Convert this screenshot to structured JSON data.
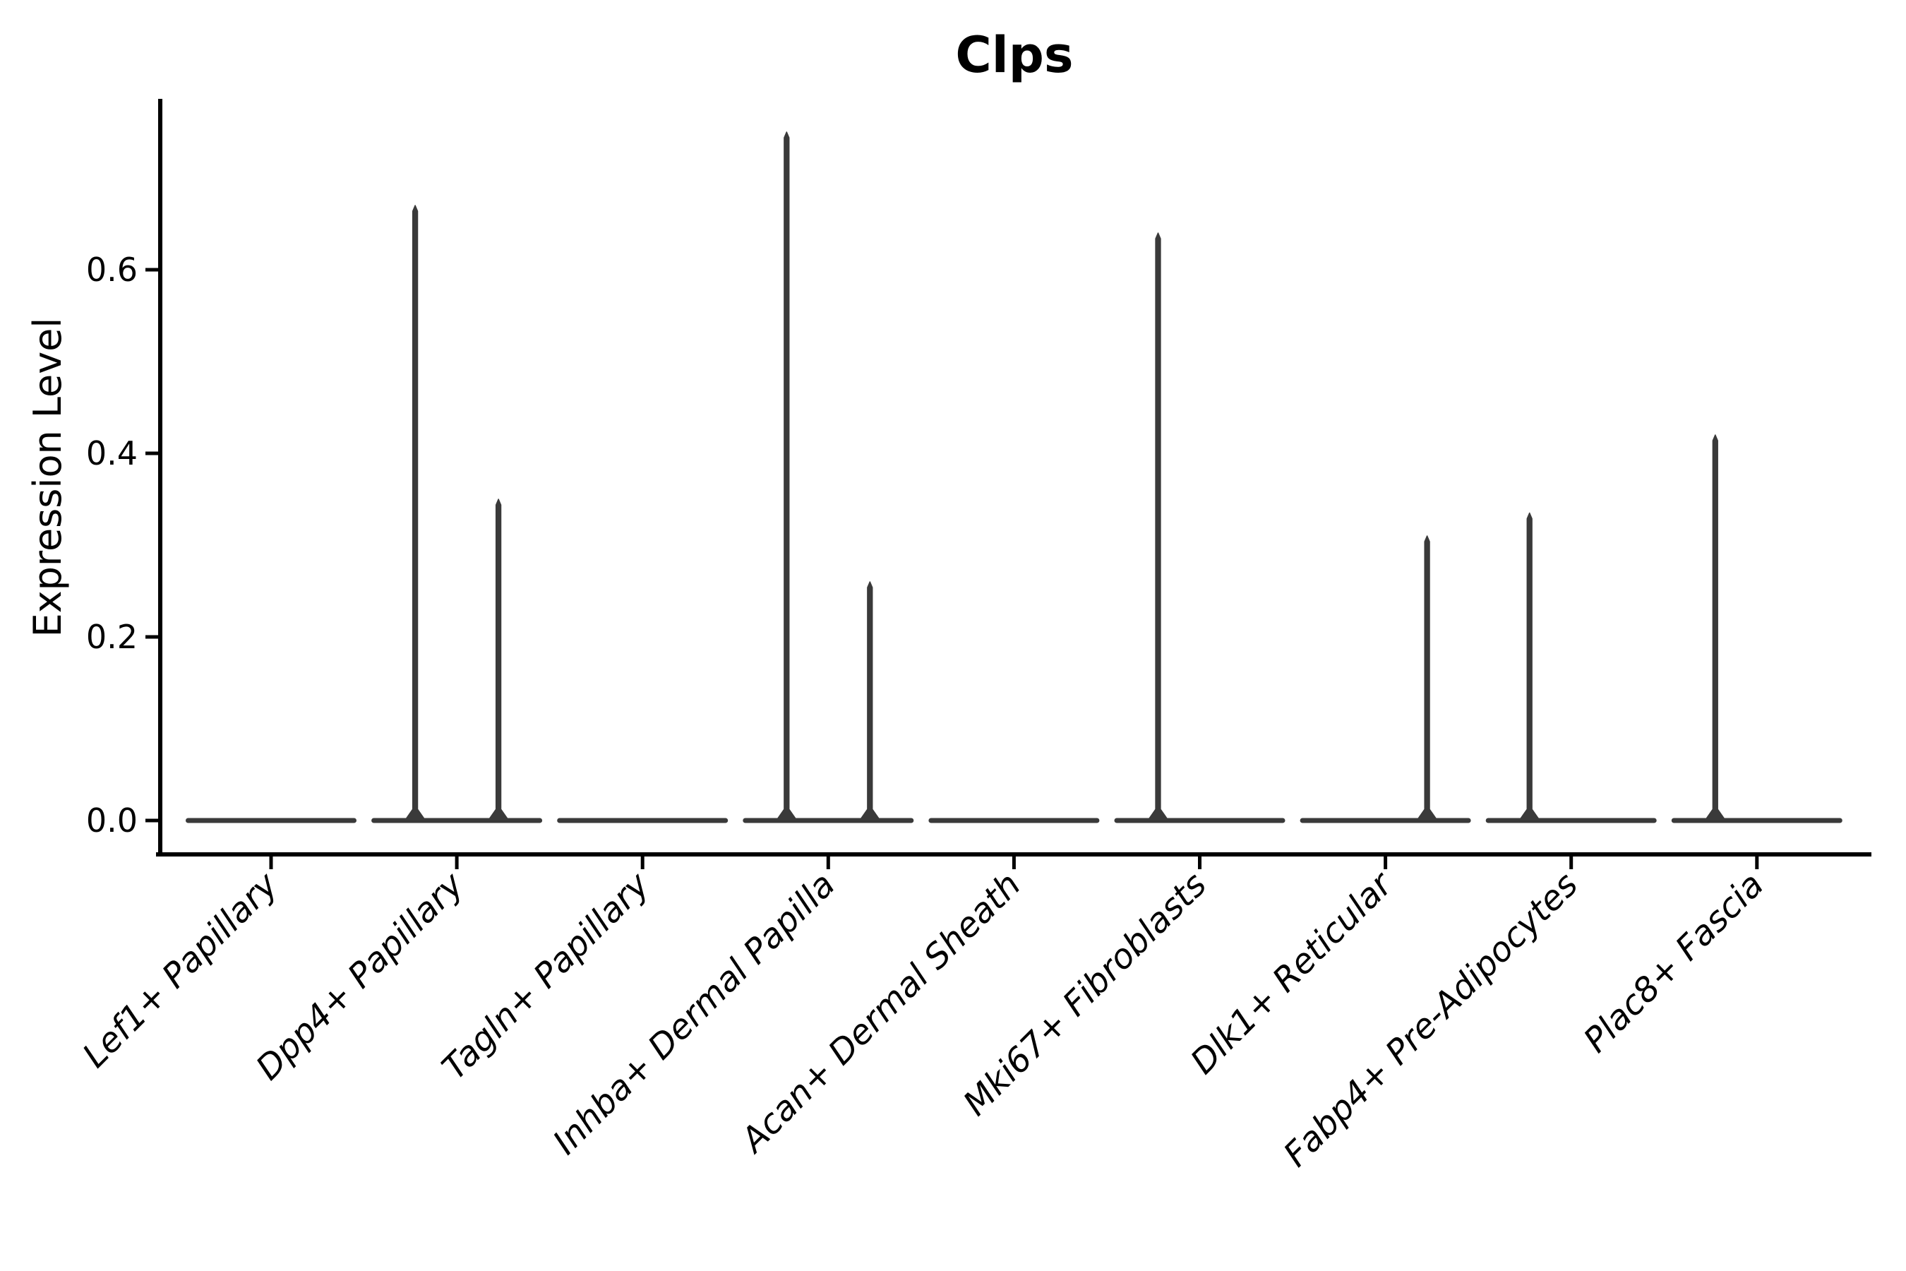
{
  "chart_data": {
    "type": "violin",
    "title": "Clps",
    "ylabel": "Expression Level",
    "xlabel": "",
    "categories": [
      "Lef1+ Papillary",
      "Dpp4+ Papillary",
      "Tagln+ Papillary",
      "Inhba+ Dermal Papilla",
      "Acan+ Dermal Sheath",
      "Mki67+ Fibroblasts",
      "Dlk1+ Reticular",
      "Fabp4+ Pre-Adipocytes",
      "Plac8+ Fascia"
    ],
    "ytick_labels": [
      "0.0",
      "0.2",
      "0.4",
      "0.6"
    ],
    "ytick_values": [
      0.0,
      0.2,
      0.4,
      0.6
    ],
    "ylim": [
      -0.03,
      0.79
    ],
    "x_label_rotation_deg": 45,
    "legend": null,
    "grid": false,
    "violins": [
      {
        "category": "Lef1+ Papillary",
        "base_value": 0.0,
        "spikes": []
      },
      {
        "category": "Dpp4+ Papillary",
        "base_value": 0.0,
        "spikes": [
          {
            "half": "left",
            "max": 0.67
          },
          {
            "half": "right",
            "max": 0.35
          }
        ]
      },
      {
        "category": "Tagln+ Papillary",
        "base_value": 0.0,
        "spikes": []
      },
      {
        "category": "Inhba+ Dermal Papilla",
        "base_value": 0.0,
        "spikes": [
          {
            "half": "left",
            "max": 0.75
          },
          {
            "half": "right",
            "max": 0.26
          }
        ]
      },
      {
        "category": "Acan+ Dermal Sheath",
        "base_value": 0.0,
        "spikes": []
      },
      {
        "category": "Mki67+ Fibroblasts",
        "base_value": 0.0,
        "spikes": [
          {
            "half": "left",
            "max": 0.64
          }
        ]
      },
      {
        "category": "Dlk1+ Reticular",
        "base_value": 0.0,
        "spikes": [
          {
            "half": "right",
            "max": 0.31
          }
        ]
      },
      {
        "category": "Fabp4+ Pre-Adipocytes",
        "base_value": 0.0,
        "spikes": [
          {
            "half": "left",
            "max": 0.335
          }
        ]
      },
      {
        "category": "Plac8+ Fascia",
        "base_value": 0.0,
        "spikes": [
          {
            "half": "left",
            "max": 0.42
          }
        ]
      }
    ],
    "colors": {
      "violin": "#3a3a3a",
      "axis": "#000000",
      "text": "#000000",
      "background": "#ffffff"
    }
  }
}
